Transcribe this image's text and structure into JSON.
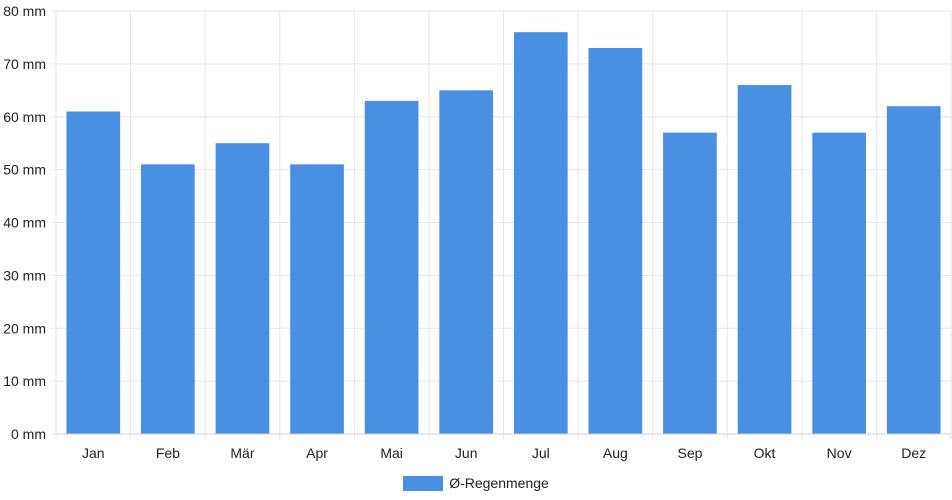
{
  "chart_data": {
    "type": "bar",
    "title": "",
    "xlabel": "",
    "ylabel": "",
    "categories": [
      "Jan",
      "Feb",
      "Mär",
      "Apr",
      "Mai",
      "Jun",
      "Jul",
      "Aug",
      "Sep",
      "Okt",
      "Nov",
      "Dez"
    ],
    "series": [
      {
        "name": "Ø-Regenmenge",
        "values": [
          61,
          51,
          55,
          51,
          63,
          65,
          76,
          73,
          57,
          66,
          57,
          62
        ]
      }
    ],
    "ylim": [
      0,
      80
    ],
    "y_ticks": [
      0,
      10,
      20,
      30,
      40,
      50,
      60,
      70,
      80
    ],
    "y_tick_labels": [
      "0 mm",
      "10 mm",
      "20 mm",
      "30 mm",
      "40 mm",
      "50 mm",
      "60 mm",
      "70 mm",
      "80 mm"
    ],
    "grid": true,
    "legend_position": "bottom",
    "bar_color": "#4a90e2",
    "grid_color": "#e6e6e6"
  }
}
